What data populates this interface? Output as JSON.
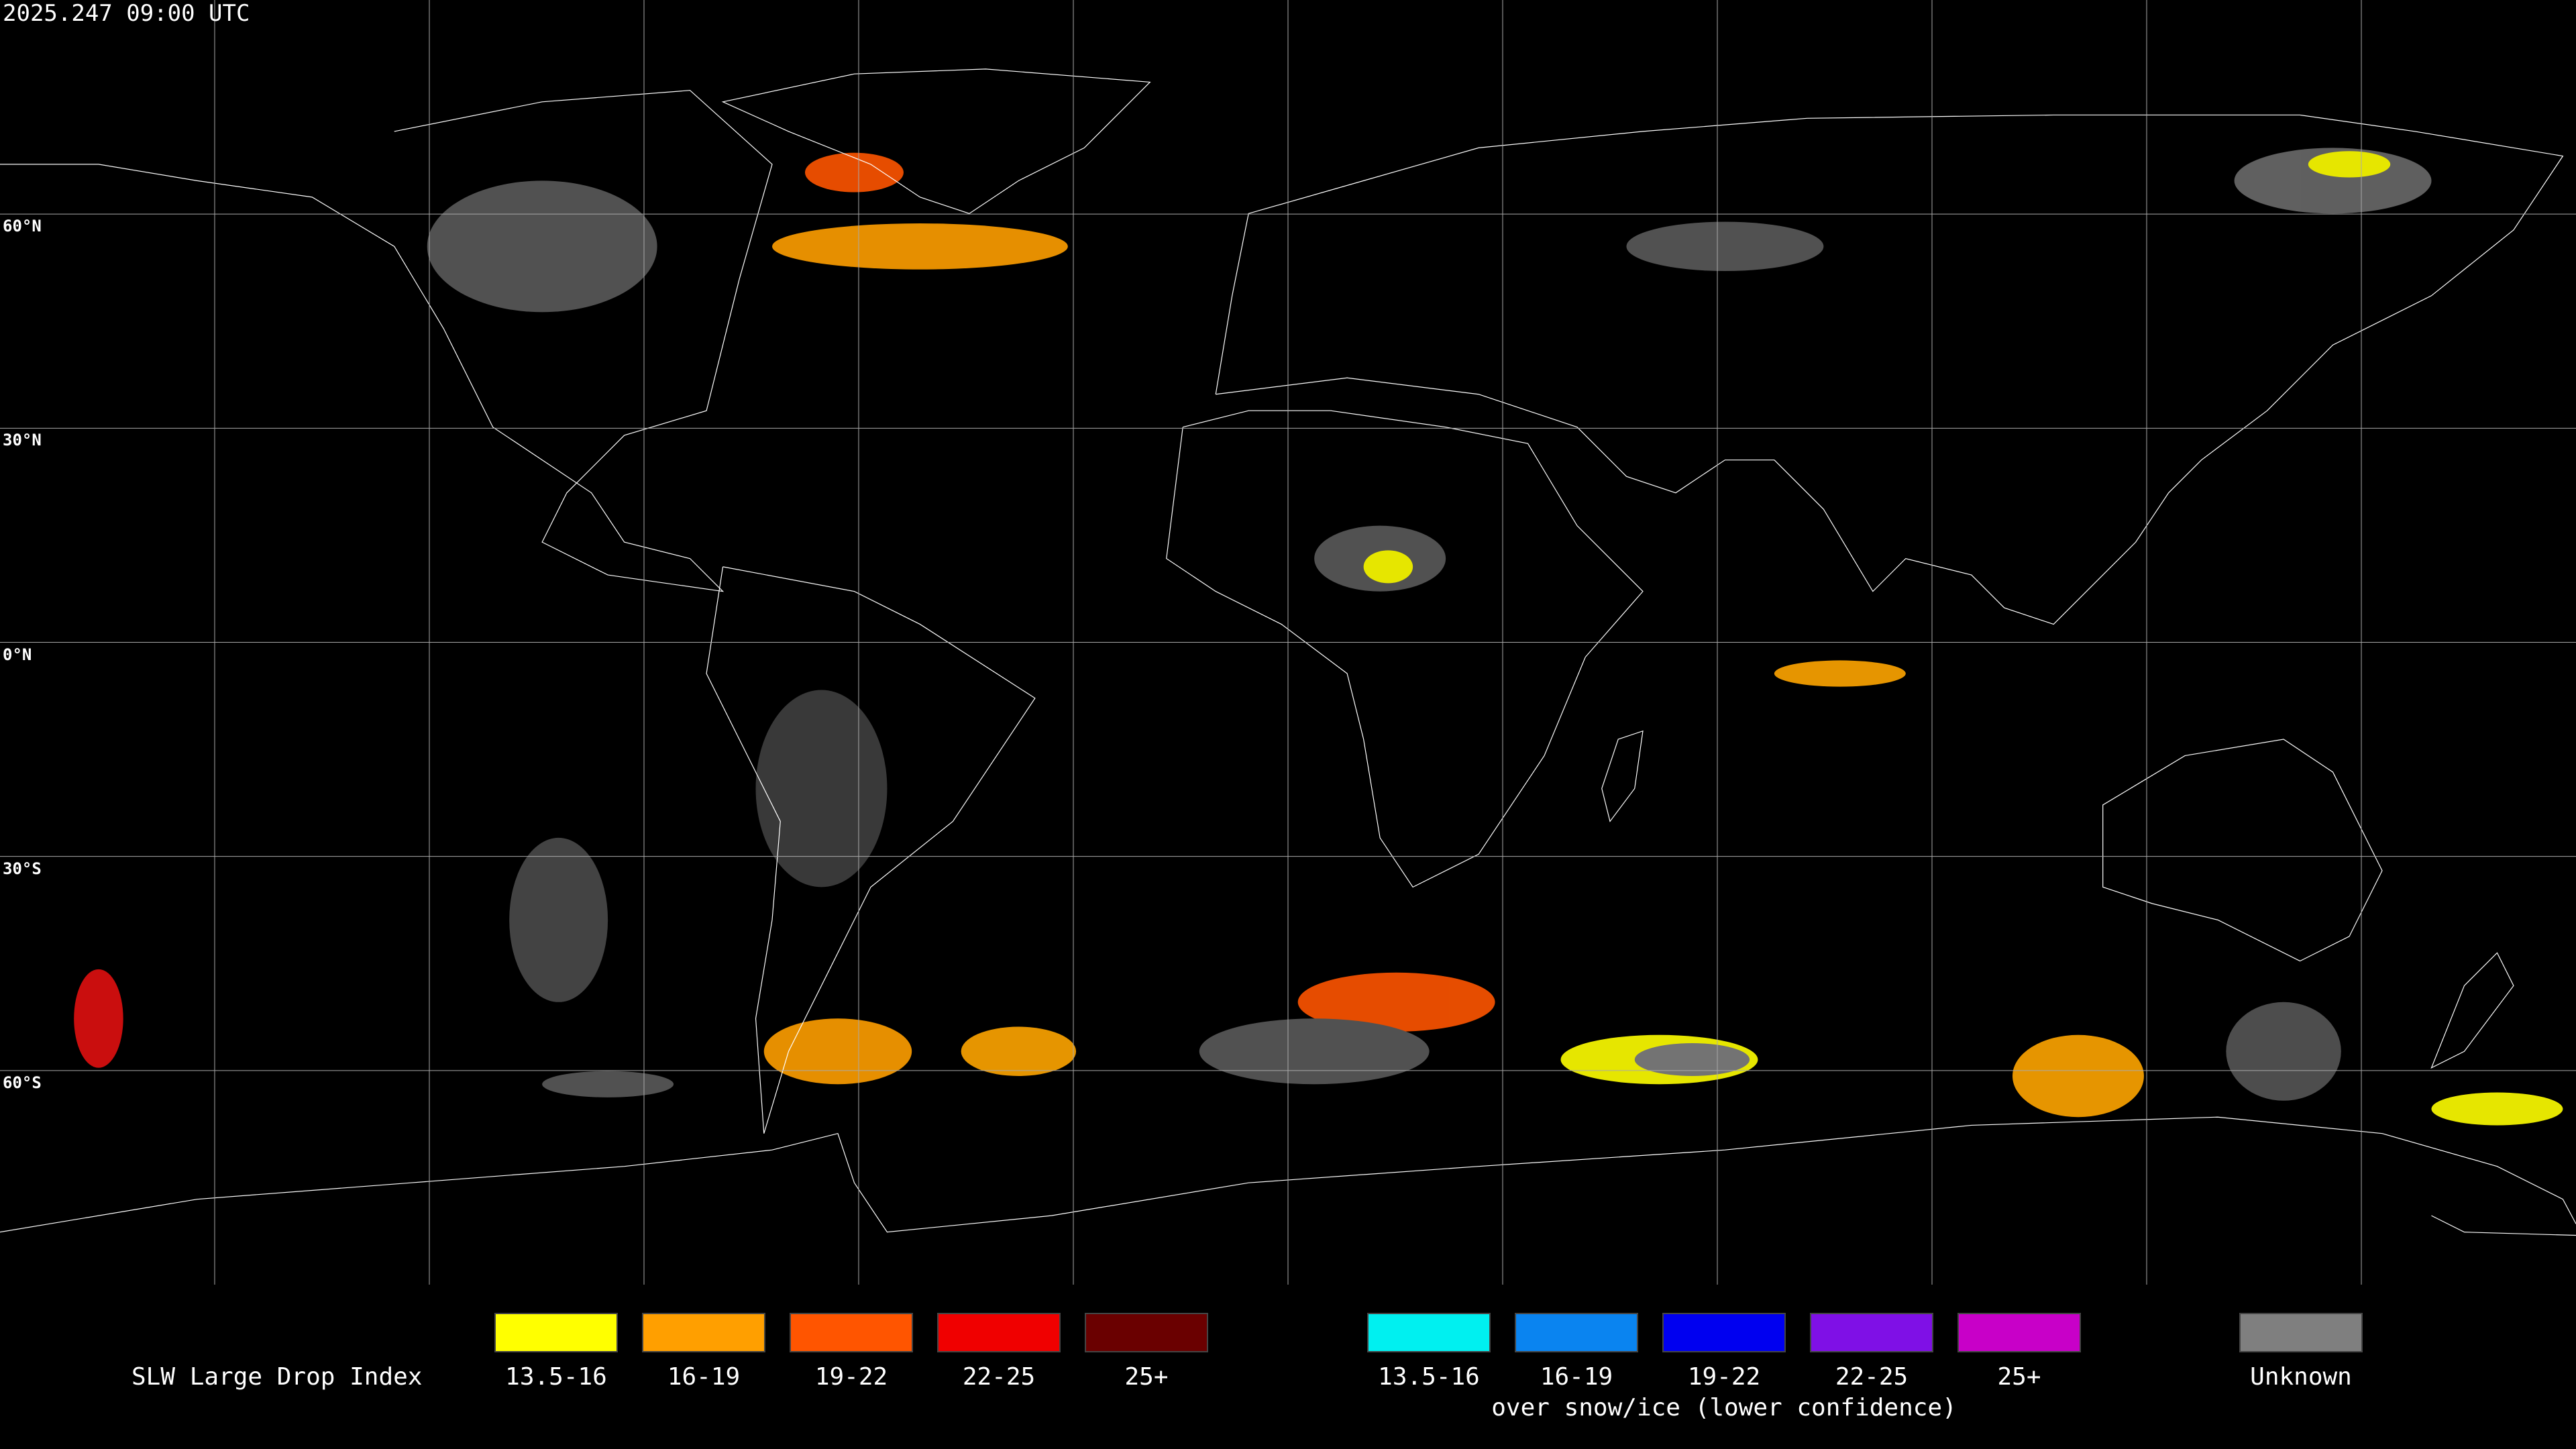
{
  "header": {
    "timestamp": "2025.247 09:00 UTC"
  },
  "map": {
    "lat_labels": [
      "60°N",
      "30°N",
      "0°N",
      "30°S",
      "60°S"
    ]
  },
  "legend": {
    "title": "SLW Large Drop Index",
    "items": [
      {
        "label": "13.5-16",
        "color": "#ffff00"
      },
      {
        "label": "16-19",
        "color": "#ff9f00"
      },
      {
        "label": "19-22",
        "color": "#ff5500"
      },
      {
        "label": "22-25",
        "color": "#f00000"
      },
      {
        "label": "25+",
        "color": "#6a0000"
      }
    ],
    "snow_items": [
      {
        "label": "13.5-16",
        "color": "#00f0f0"
      },
      {
        "label": "16-19",
        "color": "#0a84f0"
      },
      {
        "label": "19-22",
        "color": "#0000f0"
      },
      {
        "label": "22-25",
        "color": "#7f10e6"
      },
      {
        "label": "25+",
        "color": "#c800c8"
      }
    ],
    "snow_note": "over snow/ice (lower confidence)",
    "unknown": {
      "label": "Unknown",
      "color": "#7f7f7f"
    }
  }
}
